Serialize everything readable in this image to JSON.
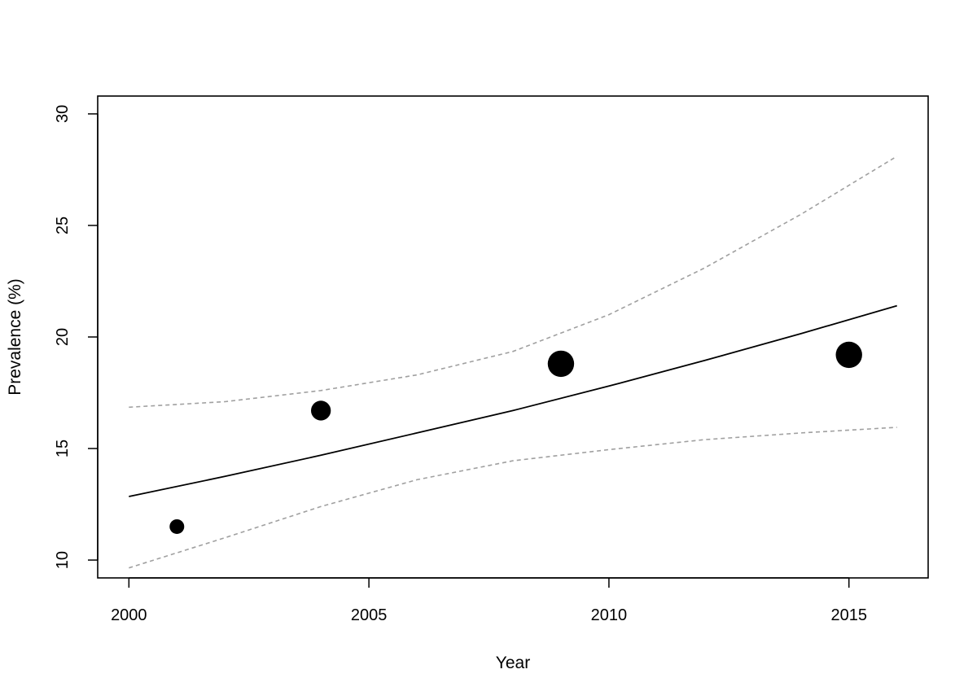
{
  "chart_data": {
    "type": "scatter",
    "xlabel": "Year",
    "ylabel": "Prevalence (%)",
    "xlim": [
      1999.35,
      2016.65
    ],
    "ylim": [
      9.2,
      30.8
    ],
    "xticks": [
      2000,
      2005,
      2010,
      2015
    ],
    "xtick_labels": [
      "2000",
      "2005",
      "2010",
      "2015"
    ],
    "yticks": [
      10,
      15,
      20,
      25,
      30
    ],
    "ytick_labels": [
      "10",
      "15",
      "20",
      "25",
      "30"
    ],
    "grid": false,
    "legend": "none",
    "points": [
      {
        "x": 2001,
        "y": 11.5,
        "weight": 1.0
      },
      {
        "x": 2004,
        "y": 16.7,
        "weight": 1.35
      },
      {
        "x": 2009,
        "y": 18.8,
        "weight": 1.8
      },
      {
        "x": 2015,
        "y": 19.2,
        "weight": 1.8
      }
    ],
    "fit_line": {
      "x": [
        2000,
        2002,
        2004,
        2006,
        2008,
        2010,
        2012,
        2014,
        2016
      ],
      "y": [
        12.85,
        13.75,
        14.7,
        15.7,
        16.7,
        17.8,
        18.95,
        20.15,
        21.4
      ]
    },
    "ci_upper": {
      "x": [
        2000,
        2002,
        2004,
        2006,
        2008,
        2010,
        2012,
        2014,
        2016
      ],
      "y": [
        16.85,
        17.1,
        17.6,
        18.3,
        19.35,
        21.0,
        23.1,
        25.5,
        28.1
      ]
    },
    "ci_lower": {
      "x": [
        2000,
        2002,
        2004,
        2006,
        2008,
        2010,
        2012,
        2014,
        2016
      ],
      "y": [
        9.65,
        11.0,
        12.4,
        13.6,
        14.45,
        14.95,
        15.4,
        15.7,
        15.95
      ]
    },
    "colors": {
      "points": "#000000",
      "fit_line": "#000000",
      "ci_lines": "#a0a0a0",
      "axes": "#000000"
    }
  }
}
